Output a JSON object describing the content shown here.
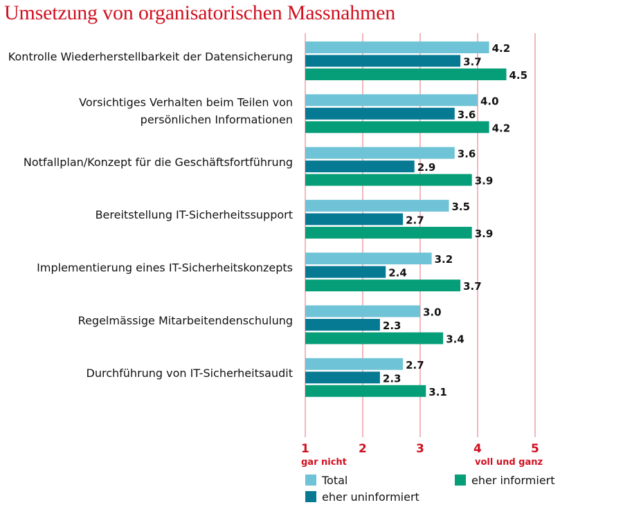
{
  "chart_data": {
    "type": "bar",
    "orientation": "horizontal",
    "title": "Umsetzung von organisatorischen Massnahmen",
    "categories": [
      [
        "Kontrolle Wiederherstellbarkeit der Datensicherung"
      ],
      [
        "Vorsichtiges Verhalten beim Teilen von",
        "persönlichen Informationen"
      ],
      [
        "Notfallplan/Konzept für die Geschäftsfortführung"
      ],
      [
        "Bereitstellung IT-Sicherheitssupport"
      ],
      [
        "Implementierung eines IT-Sicherheitskonzepts"
      ],
      [
        "Regelmässige Mitarbeitendenschulung"
      ],
      [
        "Durchführung von IT-Sicherheitsaudit"
      ]
    ],
    "series": [
      {
        "name": "Total",
        "color": "#6ec3d6",
        "values": [
          4.2,
          4.0,
          3.6,
          3.5,
          3.2,
          3.0,
          2.7
        ]
      },
      {
        "name": "eher uninformiert",
        "color": "#077a93",
        "values": [
          3.7,
          3.6,
          2.9,
          2.7,
          2.4,
          2.3,
          2.3
        ]
      },
      {
        "name": "eher informiert",
        "color": "#059e78",
        "values": [
          4.5,
          4.2,
          3.9,
          3.9,
          3.7,
          3.4,
          3.1
        ]
      }
    ],
    "xlim": [
      1,
      5
    ],
    "xticks": [
      "1",
      "2",
      "3",
      "4",
      "5"
    ],
    "x_anchor_labels": {
      "low": "gar nicht",
      "high": "voll und ganz"
    },
    "grid": true,
    "gridline_color": "#d0101f",
    "legend_position": "bottom"
  }
}
